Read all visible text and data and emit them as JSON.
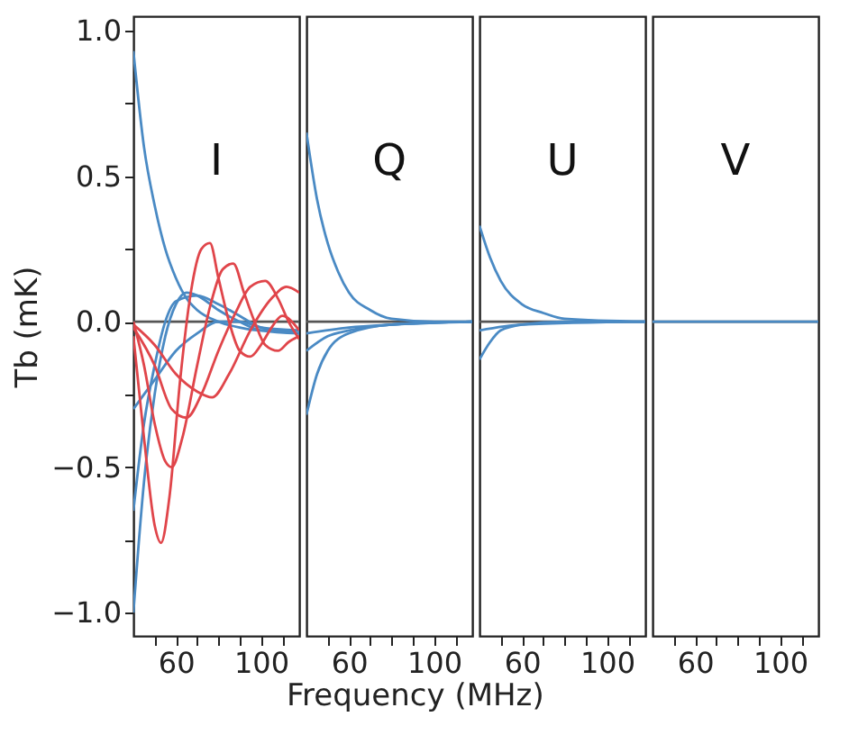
{
  "chart_data": [
    {
      "type": "line",
      "xlabel": "Frequency (MHz)",
      "ylabel": "Tb (mK)",
      "annotations": [
        "I"
      ],
      "xlim": [
        40,
        118
      ],
      "ylim": [
        -1.08,
        1.05
      ],
      "xticks": [
        {
          "value": 50,
          "label": null
        },
        60,
        {
          "value": 70,
          "label": null
        },
        {
          "value": 80,
          "label": null
        },
        {
          "value": 90,
          "label": null
        },
        100,
        {
          "value": 110,
          "label": null
        }
      ],
      "yticks": [
        {
          "value": -1.0,
          "label": "−1.0"
        },
        {
          "value": -0.75,
          "label": null
        },
        {
          "value": -0.5,
          "label": "−0.5"
        },
        {
          "value": -0.25,
          "label": null
        },
        {
          "value": 0.0,
          "label": "0.0"
        },
        {
          "value": 0.25,
          "label": null
        },
        {
          "value": 0.5,
          "label": "0.5"
        },
        {
          "value": 0.75,
          "label": null
        },
        {
          "value": 1.0,
          "label": "1.0"
        }
      ],
      "grid": false,
      "ref_lines": [
        {
          "axis": "y",
          "value": 0,
          "color": "#555555"
        }
      ],
      "series": [
        {
          "color": "#4a8ac4",
          "x": [
            40,
            45,
            50,
            55,
            60,
            65,
            70,
            80,
            90,
            100,
            118
          ],
          "values": [
            0.93,
            0.6,
            0.4,
            0.25,
            0.15,
            0.08,
            0.04,
            0.0,
            -0.02,
            -0.03,
            -0.03
          ]
        },
        {
          "color": "#4a8ac4",
          "x": [
            40,
            45,
            50,
            55,
            60,
            65,
            70,
            80,
            90,
            100,
            118
          ],
          "values": [
            -1.0,
            -0.55,
            -0.25,
            -0.05,
            0.06,
            0.1,
            0.09,
            0.04,
            0.0,
            -0.03,
            -0.04
          ]
        },
        {
          "color": "#4a8ac4",
          "x": [
            40,
            45,
            50,
            55,
            60,
            70,
            80,
            90,
            100,
            118
          ],
          "values": [
            -0.65,
            -0.35,
            -0.15,
            0.0,
            0.07,
            0.09,
            0.06,
            0.02,
            -0.02,
            -0.04
          ]
        },
        {
          "color": "#4a8ac4",
          "x": [
            40,
            50,
            60,
            70,
            80,
            90,
            100,
            118
          ],
          "values": [
            -0.3,
            -0.2,
            -0.1,
            -0.04,
            0.0,
            0.0,
            -0.02,
            -0.03
          ]
        },
        {
          "color": "#e0454a",
          "x": [
            40,
            45,
            50,
            53,
            57,
            62,
            67,
            72,
            76,
            80,
            85,
            90,
            95,
            100,
            105,
            110,
            118
          ],
          "values": [
            -0.05,
            -0.4,
            -0.7,
            -0.76,
            -0.6,
            -0.2,
            0.1,
            0.25,
            0.27,
            0.15,
            0.0,
            -0.1,
            -0.12,
            -0.08,
            -0.02,
            0.02,
            -0.03
          ]
        },
        {
          "color": "#e0454a",
          "x": [
            40,
            45,
            50,
            55,
            58,
            63,
            70,
            76,
            82,
            87,
            92,
            97,
            102,
            108,
            113,
            118
          ],
          "values": [
            0.0,
            -0.15,
            -0.35,
            -0.48,
            -0.5,
            -0.4,
            -0.15,
            0.05,
            0.18,
            0.2,
            0.1,
            0.0,
            -0.08,
            -0.1,
            -0.07,
            -0.05
          ]
        },
        {
          "color": "#e0454a",
          "x": [
            40,
            50,
            58,
            65,
            72,
            80,
            88,
            95,
            102,
            108,
            113,
            118
          ],
          "values": [
            -0.02,
            -0.15,
            -0.3,
            -0.33,
            -0.25,
            -0.1,
            0.03,
            0.12,
            0.14,
            0.08,
            0.0,
            -0.06
          ]
        },
        {
          "color": "#e0454a",
          "x": [
            40,
            50,
            60,
            70,
            77,
            85,
            95,
            105,
            112,
            118
          ],
          "values": [
            -0.01,
            -0.08,
            -0.18,
            -0.24,
            -0.26,
            -0.18,
            -0.03,
            0.08,
            0.12,
            0.1
          ]
        }
      ]
    },
    {
      "type": "line",
      "annotations": [
        "Q"
      ],
      "xlim": [
        40,
        118
      ],
      "ylim": [
        -1.08,
        1.05
      ],
      "tick_labels": "x",
      "xticks": [
        {
          "value": 50,
          "label": null
        },
        60,
        {
          "value": 70,
          "label": null
        },
        {
          "value": 80,
          "label": null
        },
        {
          "value": 90,
          "label": null
        },
        100,
        {
          "value": 110,
          "label": null
        }
      ],
      "grid": false,
      "ref_lines": [
        {
          "axis": "y",
          "value": 0,
          "color": "#555555"
        }
      ],
      "series": [
        {
          "color": "#4a8ac4",
          "x": [
            40,
            45,
            50,
            55,
            60,
            70,
            80,
            100,
            118
          ],
          "values": [
            0.65,
            0.42,
            0.27,
            0.17,
            0.1,
            0.04,
            0.01,
            0.0,
            0.0
          ]
        },
        {
          "color": "#4a8ac4",
          "x": [
            40,
            45,
            50,
            60,
            80,
            118
          ],
          "values": [
            -0.32,
            -0.18,
            -0.1,
            -0.04,
            -0.01,
            0.0
          ]
        },
        {
          "color": "#4a8ac4",
          "x": [
            40,
            50,
            60,
            80,
            118
          ],
          "values": [
            -0.1,
            -0.05,
            -0.03,
            -0.01,
            0.0
          ]
        },
        {
          "color": "#4a8ac4",
          "x": [
            40,
            60,
            80,
            118
          ],
          "values": [
            -0.04,
            -0.02,
            -0.01,
            0.0
          ]
        }
      ]
    },
    {
      "type": "line",
      "annotations": [
        "U"
      ],
      "xlim": [
        40,
        118
      ],
      "ylim": [
        -1.08,
        1.05
      ],
      "tick_labels": "x",
      "xticks": [
        {
          "value": 50,
          "label": null
        },
        60,
        {
          "value": 70,
          "label": null
        },
        {
          "value": 80,
          "label": null
        },
        {
          "value": 90,
          "label": null
        },
        100,
        {
          "value": 110,
          "label": null
        }
      ],
      "grid": false,
      "ref_lines": [
        {
          "axis": "y",
          "value": 0,
          "color": "#555555"
        }
      ],
      "series": [
        {
          "color": "#4a8ac4",
          "x": [
            40,
            45,
            50,
            60,
            70,
            80,
            118
          ],
          "values": [
            0.33,
            0.22,
            0.14,
            0.06,
            0.03,
            0.01,
            0.0
          ]
        },
        {
          "color": "#4a8ac4",
          "x": [
            40,
            45,
            50,
            60,
            80,
            118
          ],
          "values": [
            -0.13,
            -0.07,
            -0.03,
            -0.01,
            0.0,
            0.0
          ]
        },
        {
          "color": "#4a8ac4",
          "x": [
            40,
            60,
            118
          ],
          "values": [
            -0.03,
            -0.01,
            0.0
          ]
        }
      ]
    },
    {
      "type": "line",
      "annotations": [
        "V"
      ],
      "xlim": [
        40,
        118
      ],
      "ylim": [
        -1.08,
        1.05
      ],
      "tick_labels": "x",
      "xticks": [
        {
          "value": 50,
          "label": null
        },
        60,
        {
          "value": 70,
          "label": null
        },
        {
          "value": 80,
          "label": null
        },
        {
          "value": 90,
          "label": null
        },
        100,
        {
          "value": 110,
          "label": null
        }
      ],
      "grid": false,
      "ref_lines": [
        {
          "axis": "y",
          "value": 0,
          "color": "#555555"
        }
      ],
      "series": [
        {
          "color": "#4a8ac4",
          "x": [
            40,
            118
          ],
          "values": [
            0.0,
            0.0
          ]
        }
      ]
    }
  ]
}
